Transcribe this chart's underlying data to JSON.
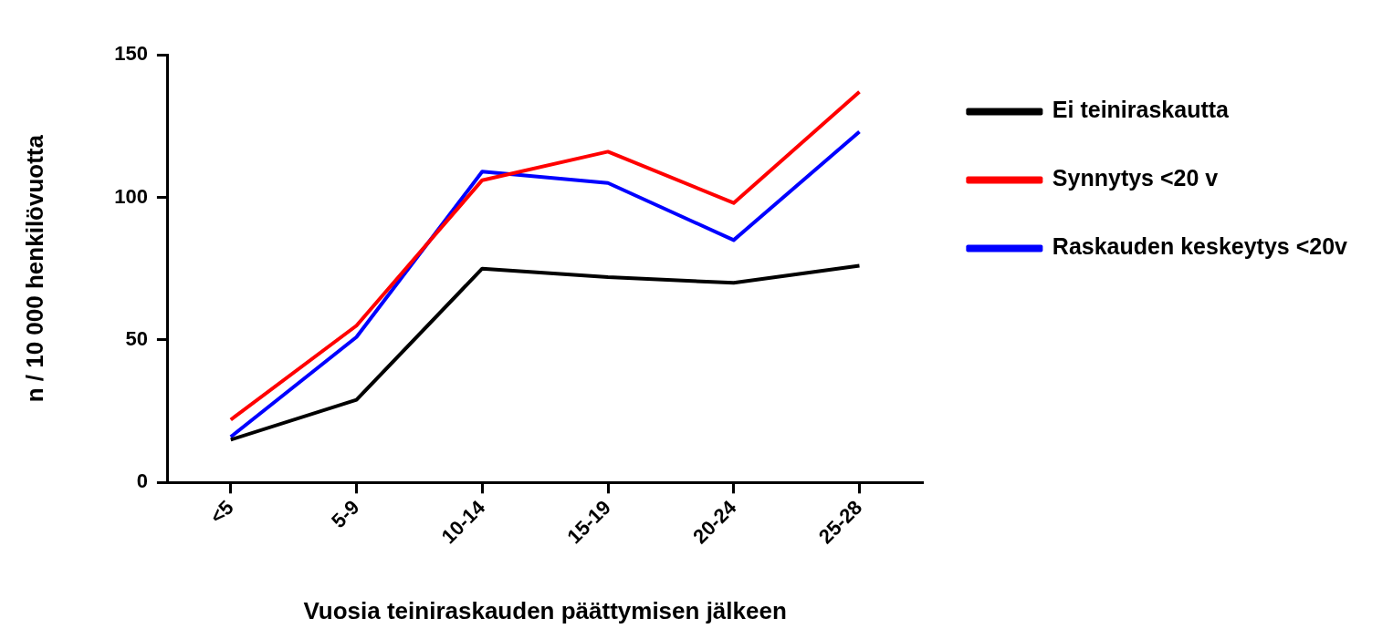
{
  "chart_data": {
    "type": "line",
    "xlabel": "Vuosia teiniraskauden päättymisen jälkeen",
    "ylabel": "n / 10 000 henkilövuotta",
    "categories": [
      "<5",
      "5-9",
      "10-14",
      "15-19",
      "20-24",
      "25-28"
    ],
    "series": [
      {
        "name": "Ei teiniraskautta",
        "color": "#000000",
        "values": [
          15,
          29,
          75,
          72,
          70,
          76
        ]
      },
      {
        "name": "Synnytys <20 v",
        "color": "#ff0000",
        "values": [
          22,
          55,
          106,
          116,
          98,
          137
        ]
      },
      {
        "name": "Raskauden keskeytys <20v",
        "color": "#0000ff",
        "values": [
          16,
          51,
          109,
          105,
          85,
          123
        ]
      }
    ],
    "ylim": [
      0,
      150
    ],
    "yticks": [
      0,
      50,
      100,
      150
    ],
    "grid": false,
    "legend": "top right",
    "marker": "none",
    "line_style": "solid"
  }
}
